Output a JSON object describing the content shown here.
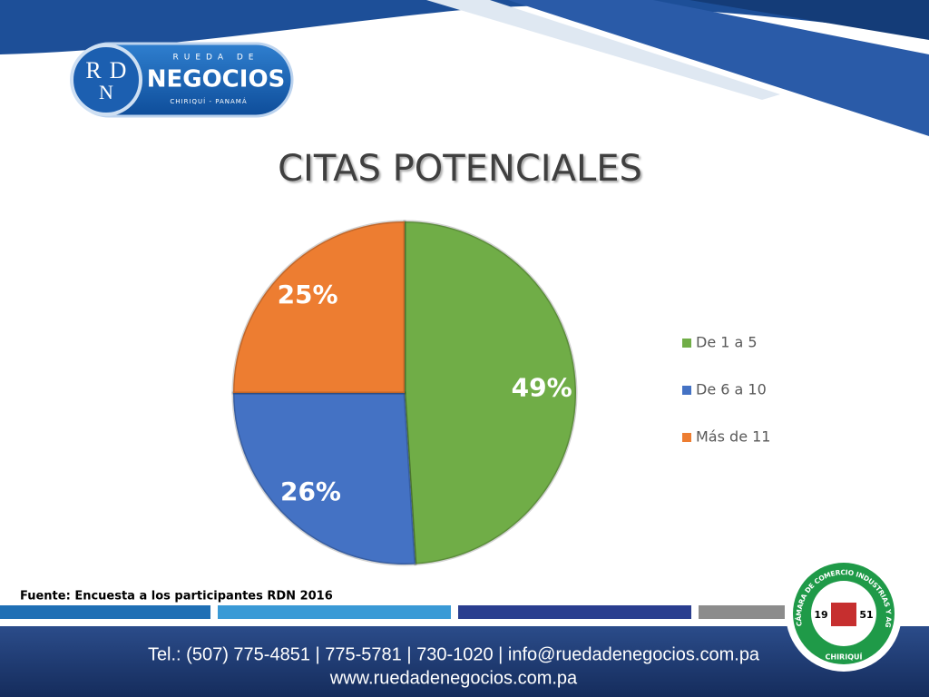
{
  "logo": {
    "letters": [
      "R",
      "D",
      "N"
    ],
    "top": "RUEDA DE",
    "name": "NEGOCIOS",
    "place": "CHIRIQUÍ - PANAMÁ"
  },
  "chart_data": {
    "type": "pie",
    "title": "CITAS POTENCIALES",
    "categories": [
      "De 1 a 5",
      "De 6 a 10",
      "Más de 11"
    ],
    "values": [
      49,
      26,
      25
    ],
    "value_labels": [
      "49%",
      "26%",
      "25%"
    ],
    "colors": [
      "#70ad47",
      "#4472c4",
      "#ed7d31"
    ],
    "legend": "right"
  },
  "source": "Fuente: Encuesta a los participantes RDN 2016",
  "footer": {
    "contact": "Tel.: (507) 775-4851 | 775-5781 | 730-1020 | info@ruedadenegocios.com.pa",
    "web": "www.ruedadenegocios.com.pa"
  },
  "seal": {
    "ring": "CÁMARA DE COMERCIO INDUSTRIAS Y AGRICULTURA",
    "bottom": "CHIRIQUÍ",
    "year_left": "19",
    "year_right": "51"
  }
}
